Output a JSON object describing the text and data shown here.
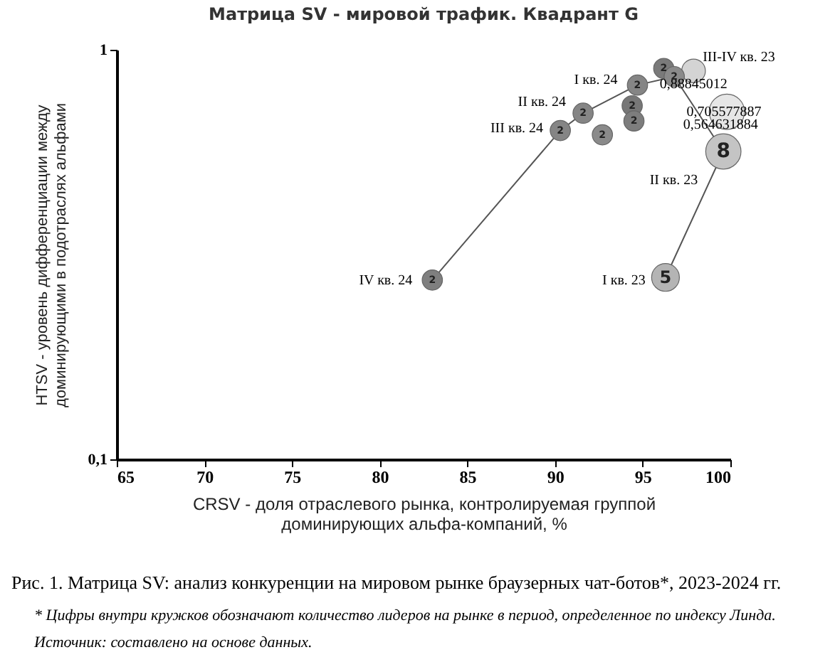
{
  "chart_data": {
    "type": "bubble",
    "title": "Матрица SV - мировой трафик. Квадрант G",
    "xlabel": "CRSV - доля отраслевого рынка, контролируемая группой\nдоминирующих альфа-компаний, %",
    "ylabel": "HTSV - уровень дифференциации между\nдоминирующими в подотраслях альфами",
    "log": "y",
    "xlim": [
      65,
      100
    ],
    "xticks": [
      65,
      70,
      75,
      80,
      85,
      90,
      95,
      100
    ],
    "ylim": [
      0.1,
      1
    ],
    "yticks": [
      {
        "value": 0.1,
        "label": "0,1"
      },
      1
    ],
    "grid": false,
    "series": [
      {
        "type": "line",
        "color": "#555555",
        "x": [
          96.3,
          99.6,
          96.8,
          94.7,
          91.6,
          90.3,
          83.0
        ],
        "values": [
          0.278,
          0.5646,
          0.86,
          0.82,
          0.7,
          0.635,
          0.274
        ]
      },
      {
        "marker": "circle",
        "x": [
          96.3,
          99.6,
          99.8,
          97.9,
          96.2,
          96.8,
          94.7,
          94.4,
          94.5,
          91.6,
          90.3,
          92.7,
          83.0
        ],
        "values": [
          0.278,
          0.5646,
          0.7056,
          0.888,
          0.9,
          0.86,
          0.82,
          0.73,
          0.67,
          0.7,
          0.635,
          0.62,
          0.274
        ],
        "sizes": [
          0.62,
          1,
          1,
          0.45,
          0.33,
          0.33,
          0.33,
          0.33,
          0.33,
          0.33,
          0.33,
          0.33,
          0.33
        ],
        "colors": [
          "#b4b4b4",
          "#c4c4c4",
          "#e6e6e6",
          "#d4d4d4",
          "#7a7a7a",
          "#8a8a8a",
          "#858585",
          "#777777",
          "#7d7d7d",
          "#858585",
          "#858585",
          "#8a8a8a",
          "#7f7f7f"
        ]
      }
    ],
    "annotations": [
      {
        "text": "I кв. 23",
        "x": 96.3,
        "y": 0.278
      },
      {
        "text": "II кв. 23",
        "x": 99.6,
        "y": 0.5646
      },
      {
        "text": "III-IV кв. 23",
        "x": 96.8,
        "y": 0.86
      },
      {
        "text": "I кв. 24",
        "x": 94.7,
        "y": 0.82
      },
      {
        "text": "II кв. 24",
        "x": 91.6,
        "y": 0.7
      },
      {
        "text": "III кв. 24",
        "x": 90.3,
        "y": 0.635
      },
      {
        "text": "IV кв. 24",
        "x": 83.0,
        "y": 0.274
      },
      {
        "text": "0,88845012",
        "x": 97.9,
        "y": 0.888
      },
      {
        "text": "0,705577887",
        "x": 99.8,
        "y": 0.7056
      },
      {
        "text": "0,564631884",
        "x": 99.6,
        "y": 0.5646
      },
      {
        "text": "5",
        "x": 96.3,
        "y": 0.278
      },
      {
        "text": "8",
        "x": 99.6,
        "y": 0.5646
      },
      {
        "text": "2",
        "x": 96.2,
        "y": 0.9
      },
      {
        "text": "2",
        "x": 96.8,
        "y": 0.86
      },
      {
        "text": "2",
        "x": 94.7,
        "y": 0.82
      },
      {
        "text": "2",
        "x": 94.4,
        "y": 0.73
      },
      {
        "text": "2",
        "x": 94.5,
        "y": 0.67
      },
      {
        "text": "2",
        "x": 91.6,
        "y": 0.7
      },
      {
        "text": "2",
        "x": 90.3,
        "y": 0.635
      },
      {
        "text": "2",
        "x": 92.7,
        "y": 0.62
      },
      {
        "text": "2",
        "x": 83.0,
        "y": 0.274
      },
      "Рис. 1. Матрица SV: анализ конкуренции на мировом рынке браузерных чат-ботов*, 2023-2024 гг.",
      "* Цифры внутри кружков обозначают количество лидеров на рынке в период, определенное по индексу Линда.",
      "Источник: составлено на основе данных."
    ]
  }
}
